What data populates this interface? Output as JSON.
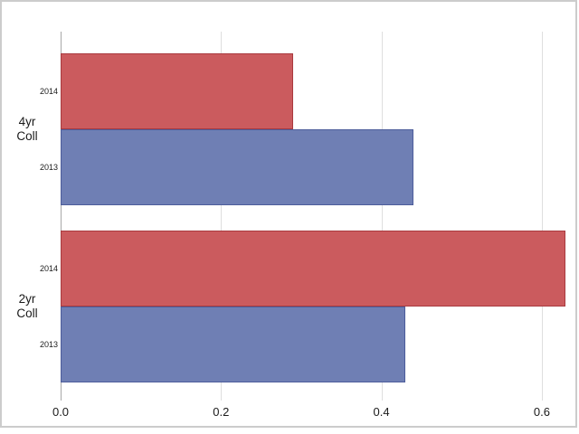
{
  "figure": {
    "background": "#ffffff",
    "border_color": "#cccccc"
  },
  "chart_data": {
    "type": "bar",
    "orientation": "horizontal",
    "title": "",
    "xlabel": "",
    "ylabel": "",
    "categories": [
      "4yr Coll",
      "2yr Coll"
    ],
    "category_label_lines": [
      [
        "4yr",
        "Coll"
      ],
      [
        "2yr",
        "Coll"
      ]
    ],
    "series": [
      {
        "name": "2014",
        "fill": "#cb5b5e",
        "stroke": "#a93a3f",
        "values": [
          0.29,
          0.63
        ]
      },
      {
        "name": "2013",
        "fill": "#6f7fb4",
        "stroke": "#4d5d9b",
        "values": [
          0.44,
          0.43
        ]
      }
    ],
    "xticks": [
      {
        "value": 0.0,
        "label": "0.0"
      },
      {
        "value": 0.2,
        "label": "0.2"
      },
      {
        "value": 0.4,
        "label": "0.4"
      },
      {
        "value": 0.6,
        "label": "0.6"
      }
    ],
    "xlim": [
      0,
      0.646
    ],
    "grid": true,
    "legend": "none",
    "axis_color": "#a8a8a8",
    "grid_color": "#dedede",
    "text_color": "#1a1a1a"
  }
}
